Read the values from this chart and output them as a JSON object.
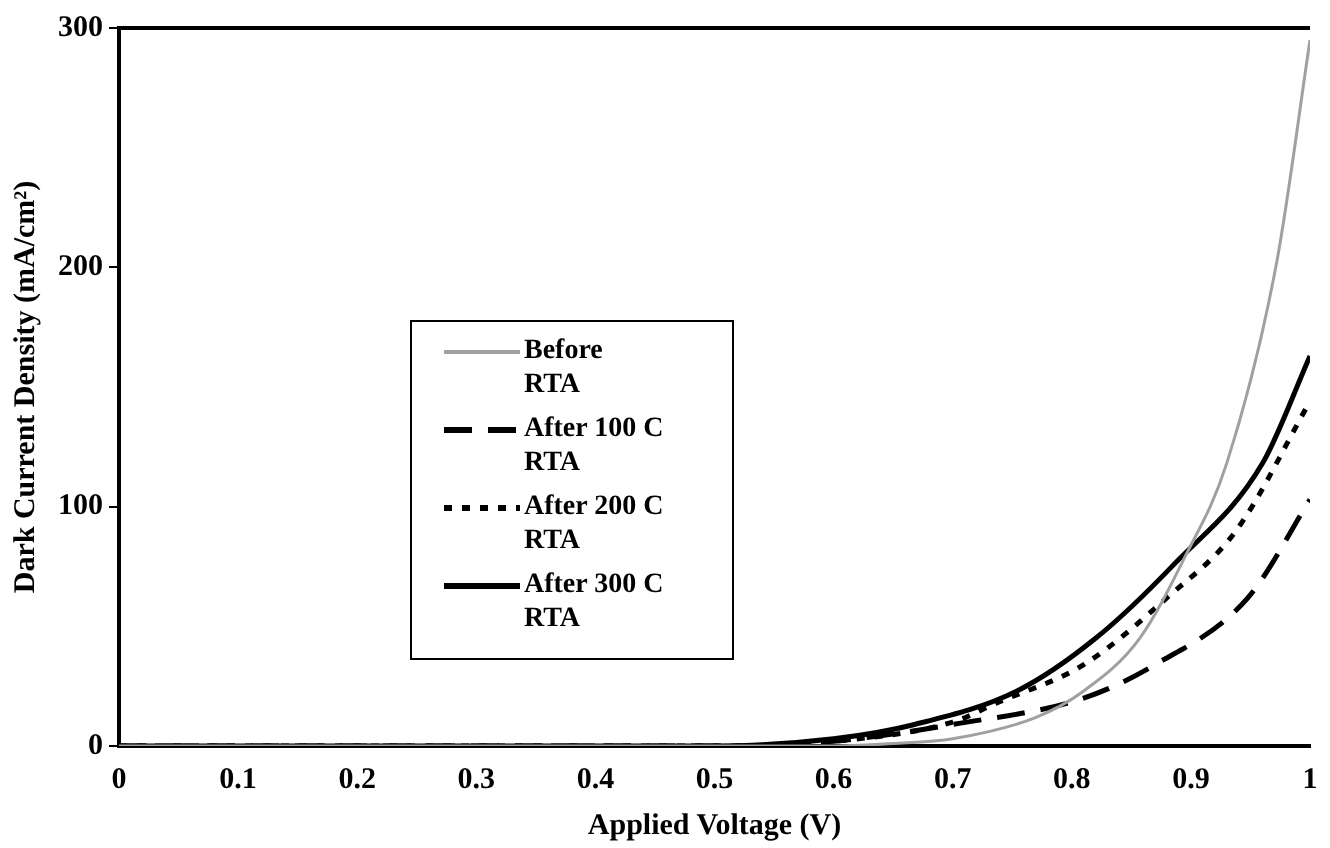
{
  "chart_data": {
    "type": "line",
    "xlabel": "Applied Voltage (V)",
    "ylabel": "Dark Current Density (mA/cm²)",
    "xlim": [
      0,
      1
    ],
    "xticks": [
      0,
      0.1,
      0.2,
      0.3,
      0.4,
      0.5,
      0.6,
      0.7,
      0.8,
      0.9,
      1
    ],
    "ylim": [
      0,
      300
    ],
    "yticks": [
      0,
      100,
      200,
      300
    ],
    "grid": false,
    "legend": "left",
    "marker": "none",
    "series": [
      {
        "name": "Before RTA",
        "color": "#a0a0a0",
        "line_style": "solid",
        "x": [
          0,
          0.3,
          0.5,
          0.6,
          0.65,
          0.7,
          0.77,
          0.81,
          0.857,
          0.895,
          0.93,
          0.972,
          1.0
        ],
        "values": [
          0,
          0,
          0,
          0,
          1,
          3,
          12,
          23,
          45,
          79,
          118,
          202,
          295
        ]
      },
      {
        "name": "After 100 C RTA",
        "color": "#000000",
        "line_style": "dashed",
        "x": [
          0,
          0.3,
          0.5,
          0.6,
          0.7,
          0.81,
          0.87,
          0.948,
          1.0
        ],
        "values": [
          0,
          0,
          0,
          2,
          9,
          20,
          34,
          62,
          103
        ]
      },
      {
        "name": "After 200 C RTA",
        "color": "#000000",
        "line_style": "dotted",
        "x": [
          0,
          0.3,
          0.5,
          0.6,
          0.7,
          0.737,
          0.81,
          0.88,
          0.938,
          1.0
        ],
        "values": [
          0,
          0,
          0,
          2,
          10,
          18,
          34,
          62,
          90,
          144
        ]
      },
      {
        "name": "After 300 C RTA",
        "color": "#000000",
        "line_style": "solid",
        "x": [
          0,
          0.3,
          0.5,
          0.6,
          0.668,
          0.754,
          0.82,
          0.886,
          0.96,
          1.0
        ],
        "values": [
          0,
          0,
          0,
          3,
          9,
          23,
          45,
          76,
          118,
          163
        ]
      }
    ]
  }
}
